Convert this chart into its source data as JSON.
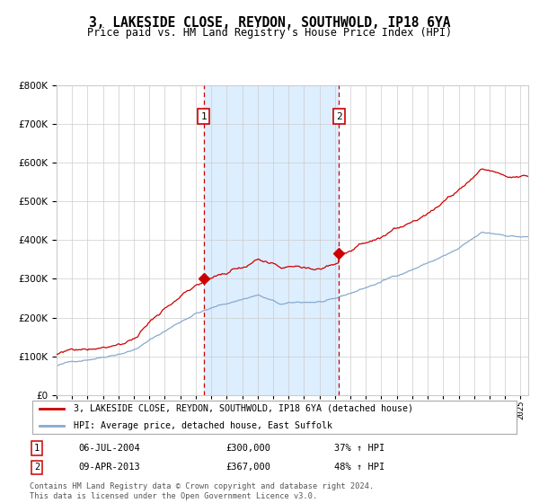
{
  "title": "3, LAKESIDE CLOSE, REYDON, SOUTHWOLD, IP18 6YA",
  "subtitle": "Price paid vs. HM Land Registry's House Price Index (HPI)",
  "purchase1": {
    "date": "2004-07-06",
    "price": 300000,
    "label": "1",
    "pct": "37% ↑ HPI"
  },
  "purchase2": {
    "date": "2013-04-09",
    "price": 367000,
    "label": "2",
    "pct": "48% ↑ HPI"
  },
  "purchase1_display": "06-JUL-2004",
  "purchase2_display": "09-APR-2013",
  "legend1": "3, LAKESIDE CLOSE, REYDON, SOUTHWOLD, IP18 6YA (detached house)",
  "legend2": "HPI: Average price, detached house, East Suffolk",
  "footer": "Contains HM Land Registry data © Crown copyright and database right 2024.\nThis data is licensed under the Open Government Licence v3.0.",
  "red_color": "#cc0000",
  "blue_color": "#88aacc",
  "highlight_color": "#ddeeff",
  "grid_color": "#cccccc",
  "background_color": "#ffffff",
  "purchase_x1_year": 2004.51,
  "purchase_x2_year": 2013.27,
  "ylim": [
    0,
    800000
  ],
  "xlim_start": 1995.0,
  "xlim_end": 2025.5
}
